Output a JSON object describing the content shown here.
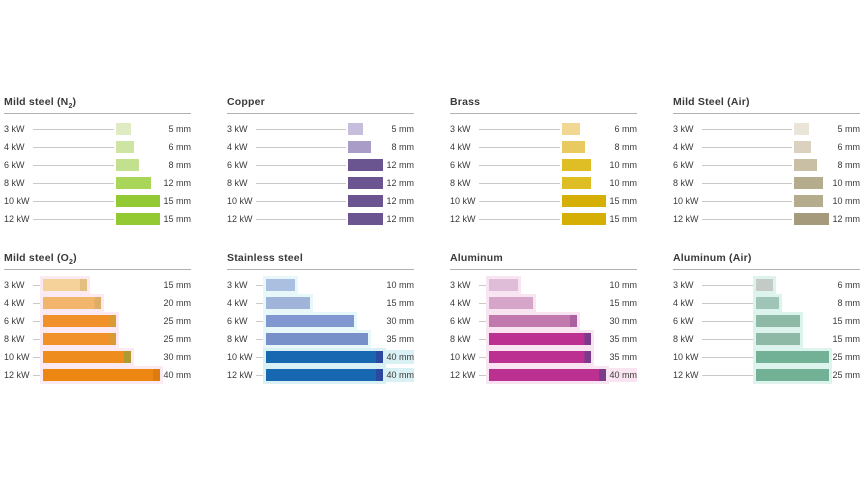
{
  "page": {
    "background": "#ffffff",
    "text_color": "#3c3a38",
    "divider_color": "#b3b1ae",
    "connector_color": "#cbc9c6",
    "description_units": {
      "power": "kW",
      "thickness": "mm"
    }
  },
  "chart_data": [
    {
      "type": "bar",
      "title": "Mild steel (N2)",
      "title_main": "Mild steel (N",
      "title_sub": "2",
      "title_end": ")",
      "categories": [
        "3 kW",
        "4 kW",
        "6 kW",
        "8 kW",
        "10 kW",
        "12 kW"
      ],
      "values": [
        5,
        6,
        8,
        12,
        15,
        15
      ],
      "value_labels": [
        "5 mm",
        "6 mm",
        "8 mm",
        "12 mm",
        "15 mm",
        "15 mm"
      ],
      "xlim": [
        0,
        15
      ],
      "bar_colors": [
        "#dfecc3",
        "#cde4a2",
        "#c3e08e",
        "#a9d558",
        "#93c932",
        "#93c932"
      ],
      "cap_colors": [
        null,
        null,
        null,
        null,
        null,
        null
      ],
      "halos": [
        null,
        null,
        null,
        null,
        null,
        null
      ],
      "label_halos": [
        null,
        null,
        null,
        null,
        null,
        null
      ]
    },
    {
      "type": "bar",
      "title": "Copper",
      "title_main": "Copper",
      "title_sub": "",
      "title_end": "",
      "categories": [
        "3 kW",
        "4 kW",
        "6 kW",
        "8 kW",
        "10 kW",
        "12 kW"
      ],
      "values": [
        5,
        8,
        12,
        12,
        12,
        12
      ],
      "value_labels": [
        "5 mm",
        "8 mm",
        "12 mm",
        "12 mm",
        "12 mm",
        "12 mm"
      ],
      "xlim": [
        0,
        12
      ],
      "bar_colors": [
        "#c7bddd",
        "#a99dc8",
        "#6a5591",
        "#6a5591",
        "#6a5591",
        "#6a5591"
      ],
      "cap_colors": [
        null,
        null,
        null,
        null,
        null,
        null
      ],
      "halos": [
        null,
        null,
        null,
        null,
        null,
        null
      ],
      "label_halos": [
        null,
        null,
        null,
        null,
        null,
        null
      ]
    },
    {
      "type": "bar",
      "title": "Brass",
      "title_main": "Brass",
      "title_sub": "",
      "title_end": "",
      "categories": [
        "3 kW",
        "4 kW",
        "6 kW",
        "8 kW",
        "10 kW",
        "12 kW"
      ],
      "values": [
        6,
        8,
        10,
        10,
        15,
        15
      ],
      "value_labels": [
        "6 mm",
        "8 mm",
        "10 mm",
        "10 mm",
        "15 mm",
        "15 mm"
      ],
      "xlim": [
        0,
        15
      ],
      "bar_colors": [
        "#f0d892",
        "#e8ca60",
        "#dfbd24",
        "#dfbd24",
        "#d5af05",
        "#d5af05"
      ],
      "cap_colors": [
        null,
        null,
        null,
        null,
        null,
        null
      ],
      "halos": [
        null,
        null,
        null,
        null,
        null,
        null
      ],
      "label_halos": [
        null,
        null,
        null,
        null,
        null,
        null
      ]
    },
    {
      "type": "bar",
      "title": "Mild Steel (Air)",
      "title_main": "Mild Steel (Air)",
      "title_sub": "",
      "title_end": "",
      "categories": [
        "3 kW",
        "4 kW",
        "6 kW",
        "8 kW",
        "10 kW",
        "12 kW"
      ],
      "values": [
        5,
        6,
        8,
        10,
        10,
        12
      ],
      "value_labels": [
        "5 mm",
        "6 mm",
        "8 mm",
        "10 mm",
        "10 mm",
        "12 mm"
      ],
      "xlim": [
        0,
        12
      ],
      "bar_colors": [
        "#eae5d8",
        "#dad2bf",
        "#c8bfa5",
        "#b5ab8d",
        "#b5ab8d",
        "#a59a7c"
      ],
      "cap_colors": [
        null,
        null,
        null,
        null,
        null,
        null
      ],
      "halos": [
        null,
        null,
        null,
        null,
        null,
        null
      ],
      "label_halos": [
        null,
        null,
        null,
        null,
        null,
        null
      ]
    },
    {
      "type": "bar",
      "title": "Mild steel (O2)",
      "title_main": "Mild steel (O",
      "title_sub": "2",
      "title_end": ")",
      "categories": [
        "3 kW",
        "4 kW",
        "6 kW",
        "8 kW",
        "10 kW",
        "12 kW"
      ],
      "values": [
        15,
        20,
        25,
        25,
        30,
        40
      ],
      "value_labels": [
        "15 mm",
        "20 mm",
        "25 mm",
        "25 mm",
        "30 mm",
        "40 mm"
      ],
      "xlim": [
        0,
        40
      ],
      "bar_colors": [
        "#f4d29a",
        "#f2b56c",
        "#f09229",
        "#f09229",
        "#ee8c1d",
        "#ee8614"
      ],
      "cap_colors": [
        "#e3bf80",
        "#deae66",
        "#d99b35",
        "#d99b35",
        "#ae9a33",
        "#dd7c10"
      ],
      "halos": [
        "#fbeaf2",
        "#fbeaf2",
        "#fbeaf2",
        "#fbeaf2",
        "#fbeaf2",
        "#fbeaf2"
      ],
      "label_halos": [
        null,
        null,
        null,
        null,
        null,
        null
      ]
    },
    {
      "type": "bar",
      "title": "Stainless steel",
      "title_main": "Stainless steel",
      "title_sub": "",
      "title_end": "",
      "categories": [
        "3 kW",
        "4 kW",
        "6 kW",
        "8 kW",
        "10 kW",
        "12 kW"
      ],
      "values": [
        10,
        15,
        30,
        35,
        40,
        40
      ],
      "value_labels": [
        "10 mm",
        "15 mm",
        "30 mm",
        "35 mm",
        "40 mm",
        "40 mm"
      ],
      "xlim": [
        0,
        40
      ],
      "bar_colors": [
        "#abbfe1",
        "#a0b4da",
        "#8097cf",
        "#7890ca",
        "#1768b1",
        "#1768b1"
      ],
      "cap_colors": [
        null,
        null,
        null,
        null,
        "#2b4a9f",
        "#2b4a9f"
      ],
      "halos": [
        "#e8f7fa",
        "#e8f7fa",
        "#e8f7fa",
        "#e8f7fa",
        "#d9f1f5",
        "#d9f1f5"
      ],
      "label_halos": [
        null,
        null,
        null,
        null,
        "#d9f1f5",
        "#d9f1f5"
      ]
    },
    {
      "type": "bar",
      "title": "Aluminum",
      "title_main": "Aluminum",
      "title_sub": "",
      "title_end": "",
      "categories": [
        "3 kW",
        "4 kW",
        "6 kW",
        "8 kW",
        "10 kW",
        "12 kW"
      ],
      "values": [
        10,
        15,
        30,
        35,
        35,
        40
      ],
      "value_labels": [
        "10 mm",
        "15 mm",
        "30 mm",
        "35 mm",
        "35 mm",
        "40 mm"
      ],
      "xlim": [
        0,
        40
      ],
      "bar_colors": [
        "#dfbcd7",
        "#d5a5ca",
        "#c279ae",
        "#bb3090",
        "#bb3090",
        "#bb3090"
      ],
      "cap_colors": [
        null,
        null,
        "#ab60a0",
        "#7b3b8b",
        "#7b3b8b",
        "#7b3b8b"
      ],
      "halos": [
        "#f9e4f1",
        "#f9e4f1",
        "#f9e4f1",
        "#f9e4f1",
        "#f9e4f1",
        "#f9e4f1"
      ],
      "label_halos": [
        null,
        null,
        null,
        null,
        null,
        "#f9e4f1"
      ]
    },
    {
      "type": "bar",
      "title": "Aluminum (Air)",
      "title_main": "Aluminum (Air)",
      "title_sub": "",
      "title_end": "",
      "categories": [
        "3 kW",
        "4 kW",
        "6 kW",
        "8 kW",
        "10 kW",
        "12 kW"
      ],
      "values": [
        6,
        8,
        15,
        15,
        25,
        25
      ],
      "value_labels": [
        "6 mm",
        "8 mm",
        "15 mm",
        "15 mm",
        "25 mm",
        "25 mm"
      ],
      "xlim": [
        0,
        25
      ],
      "bar_colors": [
        "#c4cac6",
        "#9fc5b6",
        "#8db9a6",
        "#8db9a6",
        "#73b196",
        "#73b196"
      ],
      "cap_colors": [
        null,
        null,
        null,
        null,
        null,
        null
      ],
      "halos": [
        "#dcf3ee",
        "#dcf3ee",
        "#dcf3ee",
        "#dcf3ee",
        "#dcf3ee",
        "#dcf3ee"
      ],
      "label_halos": [
        null,
        null,
        null,
        null,
        null,
        null
      ]
    }
  ]
}
